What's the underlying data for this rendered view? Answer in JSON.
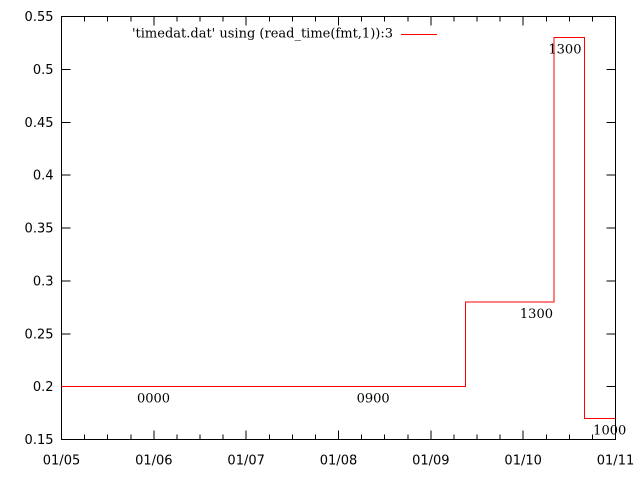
{
  "chart_data": {
    "type": "line",
    "style": "steps",
    "xlabel": "",
    "ylabel": "",
    "x_tick_labels": [
      "01/05",
      "01/06",
      "01/07",
      "01/08",
      "01/09",
      "01/10",
      "01/11"
    ],
    "y_tick_labels": [
      "0.15",
      "0.2",
      "0.25",
      "0.3",
      "0.35",
      "0.4",
      "0.45",
      "0.5",
      "0.55"
    ],
    "xlim": [
      "2003-01-05 00:00",
      "2003-01-11 00:00"
    ],
    "ylim": [
      0.15,
      0.55
    ],
    "x_minor_per_major": 3,
    "grid": false,
    "legend_position": "top-center",
    "series": [
      {
        "name": "'timedat.dat' using (read_time(fmt,1)):3",
        "color": "#ff0000",
        "points": [
          {
            "x": "2003-01-05 00:00",
            "y": 0.2,
            "label": "0000"
          },
          {
            "x": "2003-01-08 09:00",
            "y": 0.2,
            "label": "0900"
          },
          {
            "x": "2003-01-09 09:00",
            "y": 0.28,
            "label": "1300"
          },
          {
            "x": "2003-01-10 08:00",
            "y": 0.53,
            "label": "1300"
          },
          {
            "x": "2003-01-10 16:00",
            "y": 0.17,
            "label": "1000"
          }
        ],
        "end_x": "2003-01-11 00:00"
      }
    ]
  }
}
